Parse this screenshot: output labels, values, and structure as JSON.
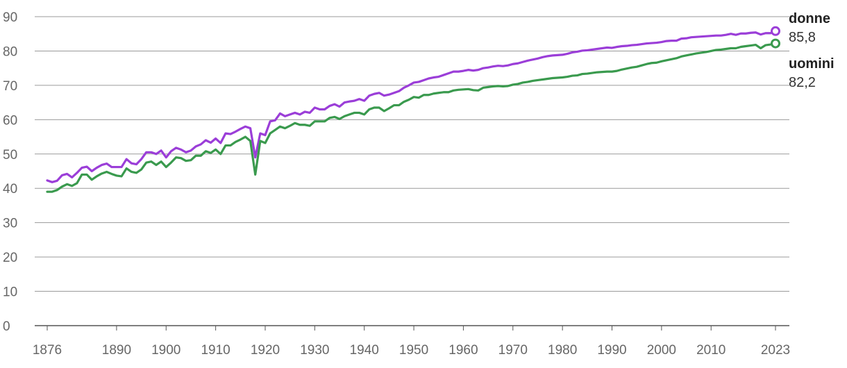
{
  "chart_data": {
    "type": "line",
    "title": "",
    "xlabel": "",
    "ylabel": "",
    "xlim": [
      1876,
      2023
    ],
    "ylim": [
      0,
      90
    ],
    "grid": true,
    "y_ticks": [
      0,
      10,
      20,
      30,
      40,
      50,
      60,
      70,
      80,
      90
    ],
    "x_tick_labels": [
      "1876",
      "1890",
      "1900",
      "1910",
      "1920",
      "1930",
      "1940",
      "1950",
      "1960",
      "1970",
      "1980",
      "1990",
      "2000",
      "2010",
      "2023"
    ],
    "series": [
      {
        "name": "donne",
        "color": "#9b3ed8",
        "end_value_label": "85,8",
        "points": [
          [
            1876,
            42.3
          ],
          [
            1877,
            41.8
          ],
          [
            1878,
            42.2
          ],
          [
            1879,
            43.8
          ],
          [
            1880,
            44.2
          ],
          [
            1881,
            43.2
          ],
          [
            1882,
            44.5
          ],
          [
            1883,
            46.0
          ],
          [
            1884,
            46.3
          ],
          [
            1885,
            45.0
          ],
          [
            1886,
            46.0
          ],
          [
            1887,
            46.8
          ],
          [
            1888,
            47.2
          ],
          [
            1889,
            46.2
          ],
          [
            1890,
            46.2
          ],
          [
            1891,
            46.2
          ],
          [
            1892,
            48.5
          ],
          [
            1893,
            47.3
          ],
          [
            1894,
            47.0
          ],
          [
            1895,
            48.5
          ],
          [
            1896,
            50.5
          ],
          [
            1897,
            50.5
          ],
          [
            1898,
            50.0
          ],
          [
            1899,
            51.0
          ],
          [
            1900,
            49.0
          ],
          [
            1901,
            50.8
          ],
          [
            1902,
            51.8
          ],
          [
            1903,
            51.3
          ],
          [
            1904,
            50.5
          ],
          [
            1905,
            51.0
          ],
          [
            1906,
            52.2
          ],
          [
            1907,
            52.8
          ],
          [
            1908,
            54.0
          ],
          [
            1909,
            53.3
          ],
          [
            1910,
            54.5
          ],
          [
            1911,
            53.2
          ],
          [
            1912,
            56.0
          ],
          [
            1913,
            55.8
          ],
          [
            1914,
            56.5
          ],
          [
            1915,
            57.3
          ],
          [
            1916,
            58.0
          ],
          [
            1917,
            57.5
          ],
          [
            1918,
            49.0
          ],
          [
            1919,
            56.0
          ],
          [
            1920,
            55.5
          ],
          [
            1921,
            59.5
          ],
          [
            1922,
            59.8
          ],
          [
            1923,
            61.8
          ],
          [
            1924,
            61.0
          ],
          [
            1925,
            61.5
          ],
          [
            1926,
            62.0
          ],
          [
            1927,
            61.5
          ],
          [
            1928,
            62.3
          ],
          [
            1929,
            62.0
          ],
          [
            1930,
            63.5
          ],
          [
            1931,
            63.0
          ],
          [
            1932,
            63.0
          ],
          [
            1933,
            64.0
          ],
          [
            1934,
            64.5
          ],
          [
            1935,
            63.8
          ],
          [
            1936,
            65.0
          ],
          [
            1937,
            65.3
          ],
          [
            1938,
            65.5
          ],
          [
            1939,
            66.0
          ],
          [
            1940,
            65.5
          ],
          [
            1941,
            67.0
          ],
          [
            1942,
            67.5
          ],
          [
            1943,
            67.8
          ],
          [
            1944,
            67.0
          ],
          [
            1945,
            67.3
          ],
          [
            1946,
            67.8
          ],
          [
            1947,
            68.3
          ],
          [
            1948,
            69.3
          ],
          [
            1949,
            70.0
          ],
          [
            1950,
            70.8
          ],
          [
            1951,
            71.0
          ],
          [
            1952,
            71.5
          ],
          [
            1953,
            72.0
          ],
          [
            1954,
            72.3
          ],
          [
            1955,
            72.5
          ],
          [
            1956,
            73.0
          ],
          [
            1957,
            73.5
          ],
          [
            1958,
            74.0
          ],
          [
            1959,
            74.0
          ],
          [
            1960,
            74.2
          ],
          [
            1961,
            74.5
          ],
          [
            1962,
            74.3
          ],
          [
            1963,
            74.5
          ],
          [
            1964,
            75.0
          ],
          [
            1965,
            75.2
          ],
          [
            1966,
            75.5
          ],
          [
            1967,
            75.7
          ],
          [
            1968,
            75.6
          ],
          [
            1969,
            75.8
          ],
          [
            1970,
            76.2
          ],
          [
            1971,
            76.4
          ],
          [
            1972,
            76.8
          ],
          [
            1973,
            77.2
          ],
          [
            1974,
            77.5
          ],
          [
            1975,
            77.8
          ],
          [
            1976,
            78.2
          ],
          [
            1977,
            78.5
          ],
          [
            1978,
            78.7
          ],
          [
            1979,
            78.8
          ],
          [
            1980,
            78.9
          ],
          [
            1981,
            79.2
          ],
          [
            1982,
            79.6
          ],
          [
            1983,
            79.8
          ],
          [
            1984,
            80.1
          ],
          [
            1985,
            80.2
          ],
          [
            1986,
            80.4
          ],
          [
            1987,
            80.6
          ],
          [
            1988,
            80.8
          ],
          [
            1989,
            81.0
          ],
          [
            1990,
            80.9
          ],
          [
            1991,
            81.2
          ],
          [
            1992,
            81.4
          ],
          [
            1993,
            81.5
          ],
          [
            1994,
            81.7
          ],
          [
            1995,
            81.8
          ],
          [
            1996,
            82.0
          ],
          [
            1997,
            82.2
          ],
          [
            1998,
            82.3
          ],
          [
            1999,
            82.4
          ],
          [
            2000,
            82.6
          ],
          [
            2001,
            82.9
          ],
          [
            2002,
            83.0
          ],
          [
            2003,
            83.0
          ],
          [
            2004,
            83.6
          ],
          [
            2005,
            83.7
          ],
          [
            2006,
            84.0
          ],
          [
            2007,
            84.1
          ],
          [
            2008,
            84.2
          ],
          [
            2009,
            84.3
          ],
          [
            2010,
            84.4
          ],
          [
            2011,
            84.5
          ],
          [
            2012,
            84.5
          ],
          [
            2013,
            84.7
          ],
          [
            2014,
            85.0
          ],
          [
            2015,
            84.7
          ],
          [
            2016,
            85.1
          ],
          [
            2017,
            85.1
          ],
          [
            2018,
            85.3
          ],
          [
            2019,
            85.4
          ],
          [
            2020,
            84.8
          ],
          [
            2021,
            85.2
          ],
          [
            2022,
            85.2
          ],
          [
            2023,
            85.8
          ]
        ]
      },
      {
        "name": "uomini",
        "color": "#3a9a4e",
        "end_value_label": "82,2",
        "points": [
          [
            1876,
            39.0
          ],
          [
            1877,
            39.0
          ],
          [
            1878,
            39.5
          ],
          [
            1879,
            40.5
          ],
          [
            1880,
            41.2
          ],
          [
            1881,
            40.7
          ],
          [
            1882,
            41.5
          ],
          [
            1883,
            44.0
          ],
          [
            1884,
            44.0
          ],
          [
            1885,
            42.5
          ],
          [
            1886,
            43.5
          ],
          [
            1887,
            44.3
          ],
          [
            1888,
            44.8
          ],
          [
            1889,
            44.2
          ],
          [
            1890,
            43.7
          ],
          [
            1891,
            43.5
          ],
          [
            1892,
            45.8
          ],
          [
            1893,
            44.8
          ],
          [
            1894,
            44.5
          ],
          [
            1895,
            45.5
          ],
          [
            1896,
            47.5
          ],
          [
            1897,
            47.8
          ],
          [
            1898,
            46.8
          ],
          [
            1899,
            47.8
          ],
          [
            1900,
            46.2
          ],
          [
            1901,
            47.5
          ],
          [
            1902,
            49.0
          ],
          [
            1903,
            48.8
          ],
          [
            1904,
            48.0
          ],
          [
            1905,
            48.2
          ],
          [
            1906,
            49.5
          ],
          [
            1907,
            49.5
          ],
          [
            1908,
            50.8
          ],
          [
            1909,
            50.3
          ],
          [
            1910,
            51.3
          ],
          [
            1911,
            50.0
          ],
          [
            1912,
            52.5
          ],
          [
            1913,
            52.5
          ],
          [
            1914,
            53.5
          ],
          [
            1915,
            54.2
          ],
          [
            1916,
            55.0
          ],
          [
            1917,
            53.8
          ],
          [
            1918,
            44.0
          ],
          [
            1919,
            53.8
          ],
          [
            1920,
            53.2
          ],
          [
            1921,
            56.0
          ],
          [
            1922,
            57.0
          ],
          [
            1923,
            58.0
          ],
          [
            1924,
            57.5
          ],
          [
            1925,
            58.2
          ],
          [
            1926,
            59.0
          ],
          [
            1927,
            58.5
          ],
          [
            1928,
            58.5
          ],
          [
            1929,
            58.2
          ],
          [
            1930,
            59.5
          ],
          [
            1931,
            59.5
          ],
          [
            1932,
            59.5
          ],
          [
            1933,
            60.5
          ],
          [
            1934,
            60.8
          ],
          [
            1935,
            60.2
          ],
          [
            1936,
            61.0
          ],
          [
            1937,
            61.5
          ],
          [
            1938,
            62.0
          ],
          [
            1939,
            62.0
          ],
          [
            1940,
            61.5
          ],
          [
            1941,
            63.0
          ],
          [
            1942,
            63.5
          ],
          [
            1943,
            63.5
          ],
          [
            1944,
            62.5
          ],
          [
            1945,
            63.3
          ],
          [
            1946,
            64.2
          ],
          [
            1947,
            64.2
          ],
          [
            1948,
            65.2
          ],
          [
            1949,
            65.8
          ],
          [
            1950,
            66.6
          ],
          [
            1951,
            66.4
          ],
          [
            1952,
            67.2
          ],
          [
            1953,
            67.2
          ],
          [
            1954,
            67.6
          ],
          [
            1955,
            67.8
          ],
          [
            1956,
            68.0
          ],
          [
            1957,
            68.0
          ],
          [
            1958,
            68.5
          ],
          [
            1959,
            68.7
          ],
          [
            1960,
            68.8
          ],
          [
            1961,
            68.9
          ],
          [
            1962,
            68.6
          ],
          [
            1963,
            68.5
          ],
          [
            1964,
            69.3
          ],
          [
            1965,
            69.5
          ],
          [
            1966,
            69.7
          ],
          [
            1967,
            69.8
          ],
          [
            1968,
            69.7
          ],
          [
            1969,
            69.8
          ],
          [
            1970,
            70.2
          ],
          [
            1971,
            70.4
          ],
          [
            1972,
            70.8
          ],
          [
            1973,
            71.0
          ],
          [
            1974,
            71.3
          ],
          [
            1975,
            71.5
          ],
          [
            1976,
            71.7
          ],
          [
            1977,
            71.9
          ],
          [
            1978,
            72.1
          ],
          [
            1979,
            72.2
          ],
          [
            1980,
            72.3
          ],
          [
            1981,
            72.5
          ],
          [
            1982,
            72.8
          ],
          [
            1983,
            72.9
          ],
          [
            1984,
            73.3
          ],
          [
            1985,
            73.4
          ],
          [
            1986,
            73.6
          ],
          [
            1987,
            73.8
          ],
          [
            1988,
            73.9
          ],
          [
            1989,
            74.0
          ],
          [
            1990,
            74.0
          ],
          [
            1991,
            74.2
          ],
          [
            1992,
            74.6
          ],
          [
            1993,
            74.9
          ],
          [
            1994,
            75.2
          ],
          [
            1995,
            75.4
          ],
          [
            1996,
            75.8
          ],
          [
            1997,
            76.2
          ],
          [
            1998,
            76.5
          ],
          [
            1999,
            76.6
          ],
          [
            2000,
            77.0
          ],
          [
            2001,
            77.3
          ],
          [
            2002,
            77.6
          ],
          [
            2003,
            77.9
          ],
          [
            2004,
            78.4
          ],
          [
            2005,
            78.7
          ],
          [
            2006,
            79.0
          ],
          [
            2007,
            79.3
          ],
          [
            2008,
            79.5
          ],
          [
            2009,
            79.7
          ],
          [
            2010,
            80.0
          ],
          [
            2011,
            80.3
          ],
          [
            2012,
            80.4
          ],
          [
            2013,
            80.6
          ],
          [
            2014,
            80.8
          ],
          [
            2015,
            80.8
          ],
          [
            2016,
            81.2
          ],
          [
            2017,
            81.4
          ],
          [
            2018,
            81.6
          ],
          [
            2019,
            81.8
          ],
          [
            2020,
            80.8
          ],
          [
            2021,
            81.7
          ],
          [
            2022,
            81.9
          ],
          [
            2023,
            82.2
          ]
        ]
      }
    ]
  }
}
